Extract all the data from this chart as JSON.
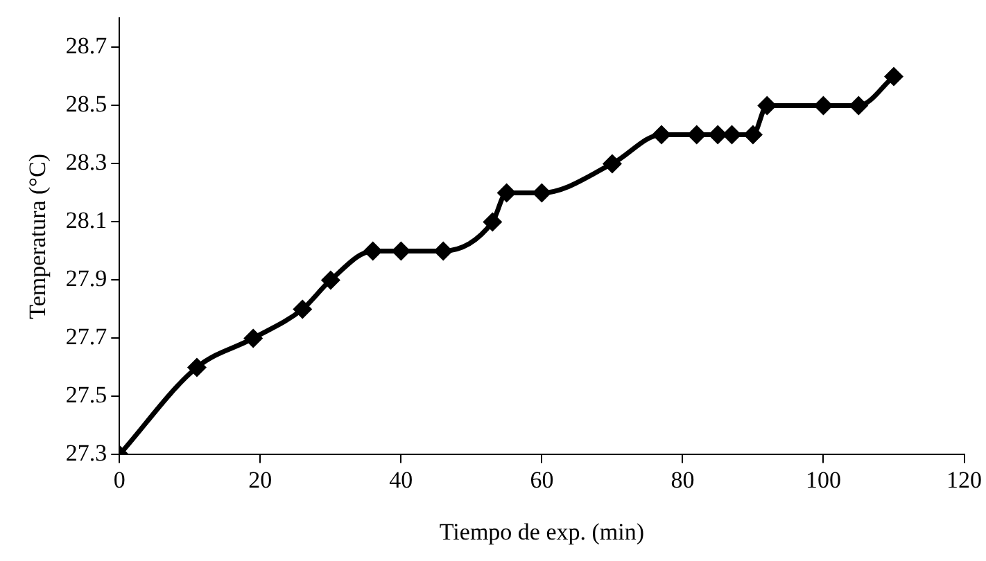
{
  "chart_data": {
    "type": "line",
    "xlabel": "Tiempo de exp. (min)",
    "ylabel": "Temperatura (°C)",
    "x": [
      0,
      11,
      19,
      26,
      30,
      36,
      40,
      46,
      53,
      55,
      60,
      70,
      77,
      82,
      85,
      87,
      90,
      92,
      100,
      105,
      110
    ],
    "series": [
      {
        "color": "#000000",
        "values": [
          27.3,
          27.6,
          27.7,
          27.8,
          27.9,
          28.0,
          28.0,
          28.0,
          28.1,
          28.2,
          28.2,
          28.3,
          28.4,
          28.4,
          28.4,
          28.4,
          28.4,
          28.5,
          28.5,
          28.5,
          28.6
        ]
      }
    ],
    "xlim": [
      0,
      120
    ],
    "xticks": [
      0,
      20,
      40,
      60,
      80,
      100,
      120
    ],
    "ylim": [
      27.3,
      28.8
    ],
    "yticks": [
      27.3,
      27.5,
      27.7,
      27.9,
      28.1,
      28.3,
      28.5,
      28.7
    ],
    "grid": false,
    "legend": false,
    "marker": "diamond",
    "line_style": "solid"
  }
}
